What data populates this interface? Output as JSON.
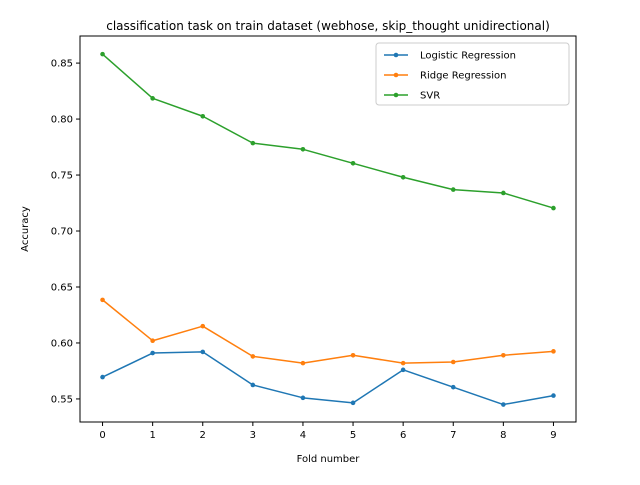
{
  "chart_data": {
    "type": "line",
    "title": "classification task on train dataset (webhose, skip_thought unidirectional)",
    "xlabel": "Fold number",
    "ylabel": "Accuracy",
    "x": [
      0,
      1,
      2,
      3,
      4,
      5,
      6,
      7,
      8,
      9
    ],
    "x_ticks": [
      "0",
      "1",
      "2",
      "3",
      "4",
      "5",
      "6",
      "7",
      "8",
      "9"
    ],
    "y_ticks": [
      "0.55",
      "0.60",
      "0.65",
      "0.70",
      "0.75",
      "0.80",
      "0.85"
    ],
    "y_tick_values": [
      0.55,
      0.6,
      0.65,
      0.7,
      0.75,
      0.8,
      0.85
    ],
    "xlim": [
      -0.45,
      9.45
    ],
    "ylim": [
      0.5294,
      0.8742
    ],
    "grid": false,
    "legend_position": "top-right",
    "series": [
      {
        "name": "Logistic Regression",
        "color": "#1f77b4",
        "values": [
          0.5695,
          0.591,
          0.592,
          0.5625,
          0.551,
          0.5465,
          0.576,
          0.5605,
          0.545,
          0.553
        ]
      },
      {
        "name": "Ridge Regression",
        "color": "#ff7f0e",
        "values": [
          0.6385,
          0.602,
          0.615,
          0.588,
          0.582,
          0.589,
          0.582,
          0.583,
          0.589,
          0.5925
        ]
      },
      {
        "name": "SVR",
        "color": "#2ca02c",
        "values": [
          0.858,
          0.8185,
          0.8025,
          0.7785,
          0.773,
          0.7605,
          0.748,
          0.737,
          0.734,
          0.7205
        ]
      }
    ]
  }
}
